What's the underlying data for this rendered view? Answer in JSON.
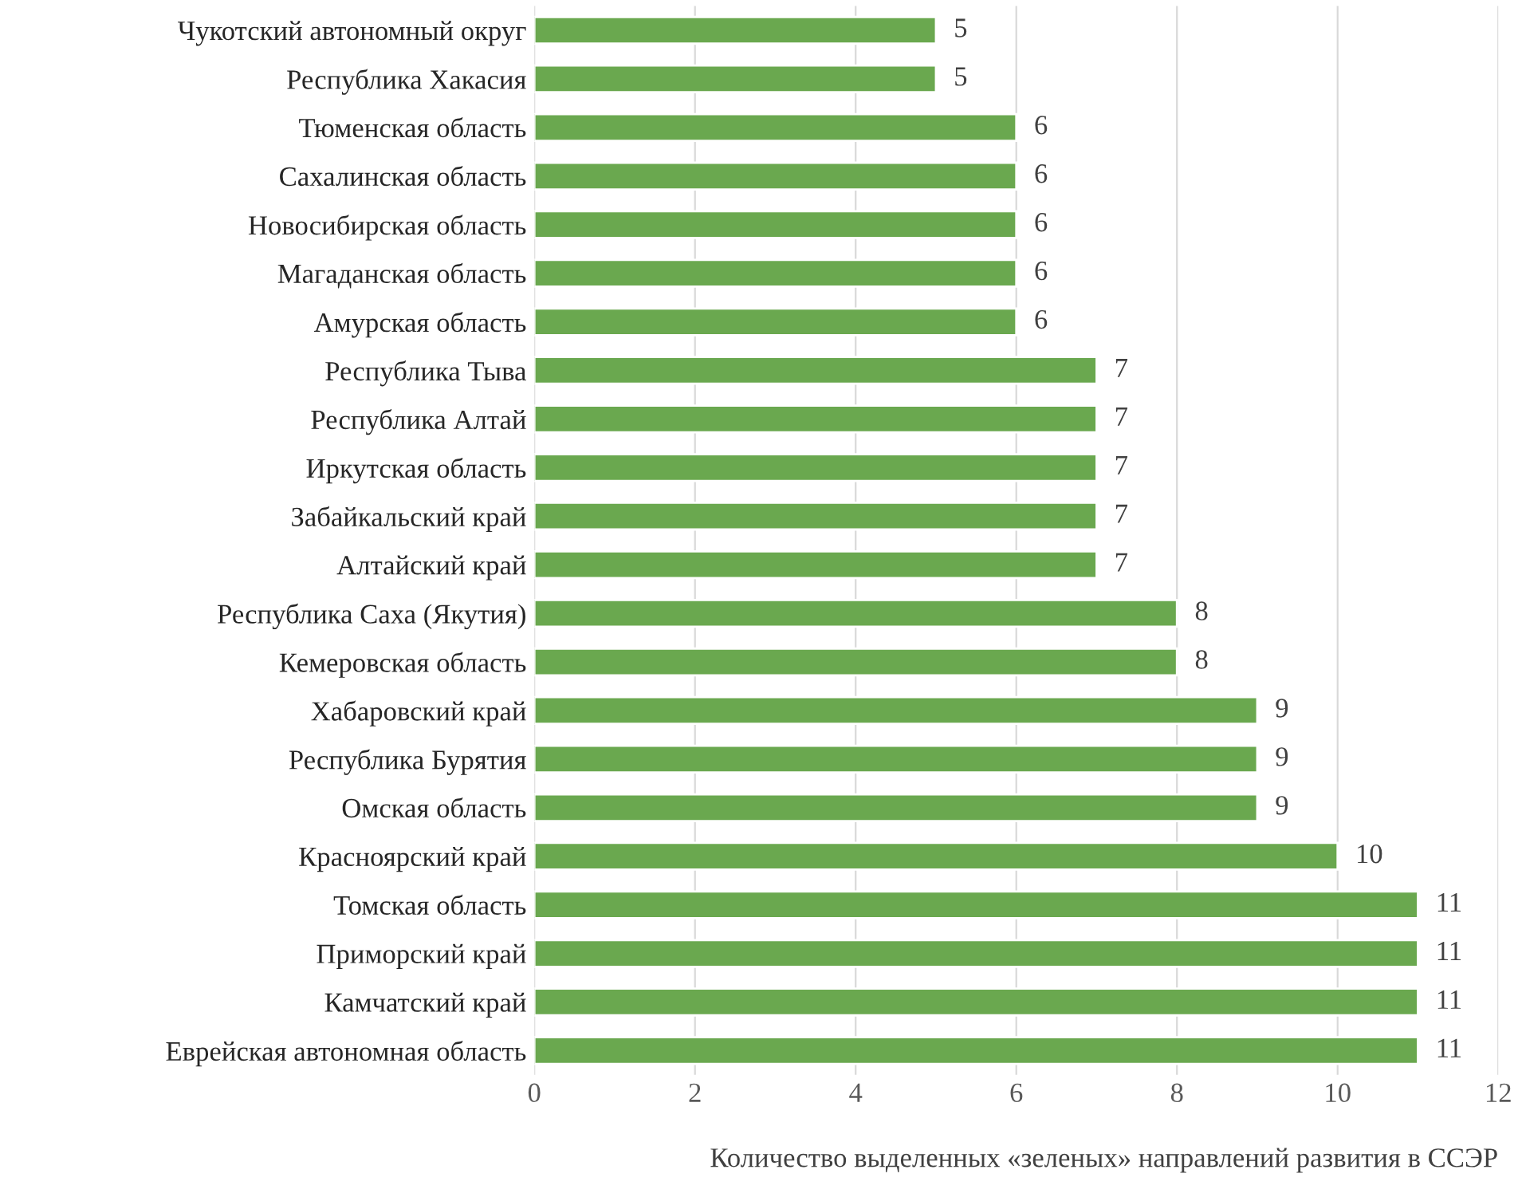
{
  "chart_data": {
    "type": "bar",
    "orientation": "horizontal",
    "xlabel": "Количество выделенных «зеленых» направлений развития в ССЭР",
    "categories": [
      "Чукотский автономный округ",
      "Республика Хакасия",
      "Тюменская область",
      "Сахалинская область",
      "Новосибирская область",
      "Магаданская область",
      "Амурская область",
      "Республика Тыва",
      "Республика Алтай",
      "Иркутская область",
      "Забайкальский край",
      "Алтайский край",
      "Республика Саха (Якутия)",
      "Кемеровская область",
      "Хабаровский край",
      "Республика Бурятия",
      "Омская область",
      "Красноярский край",
      "Томская область",
      "Приморский край",
      "Камчатский край",
      "Еврейская автономная область"
    ],
    "values": [
      5,
      5,
      6,
      6,
      6,
      6,
      6,
      7,
      7,
      7,
      7,
      7,
      8,
      8,
      9,
      9,
      9,
      10,
      11,
      11,
      11,
      11
    ],
    "color": "#6aa84f",
    "xlim": [
      0,
      12
    ],
    "xticks": [
      0,
      2,
      4,
      6,
      8,
      10,
      12
    ],
    "grid": "x",
    "data_labels": true
  }
}
